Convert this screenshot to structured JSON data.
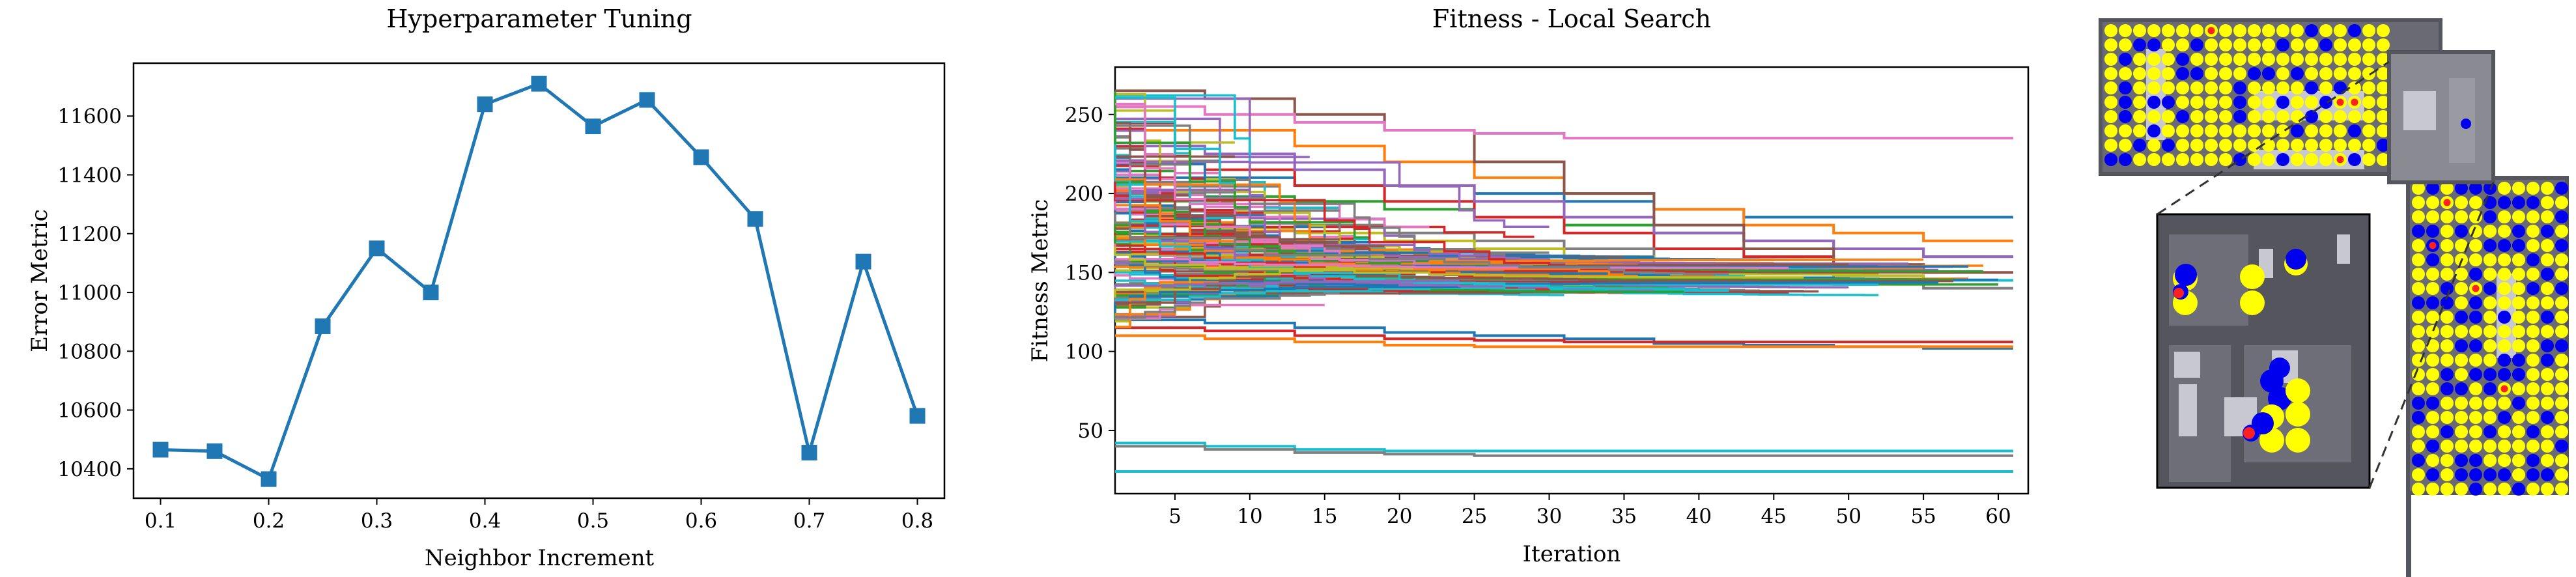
{
  "chart_data": [
    {
      "type": "line",
      "title": "Hyperparameter Tuning",
      "xlabel": "Neighbor Increment",
      "ylabel": "Error Metric",
      "xlim": [
        0.075,
        0.825
      ],
      "ylim": [
        10300,
        11780
      ],
      "xticks": [
        0.1,
        0.2,
        0.3,
        0.4,
        0.5,
        0.6,
        0.7,
        0.8
      ],
      "yticks": [
        10400,
        10600,
        10800,
        11000,
        11200,
        11400,
        11600
      ],
      "color": "#1f77b4",
      "marker": "square",
      "x": [
        0.1,
        0.15,
        0.2,
        0.25,
        0.3,
        0.35,
        0.4,
        0.45,
        0.5,
        0.55,
        0.6,
        0.65,
        0.7,
        0.75,
        0.8
      ],
      "values": [
        10465,
        10460,
        10365,
        10885,
        11150,
        11000,
        11640,
        11710,
        11565,
        11655,
        11460,
        11250,
        10455,
        11105,
        10580
      ]
    },
    {
      "type": "line",
      "title": "Fitness - Local Search",
      "xlabel": "Iteration",
      "ylabel": "Fitness Metric",
      "xlim": [
        1,
        62
      ],
      "ylim": [
        10,
        280
      ],
      "xticks": [
        5,
        10,
        15,
        20,
        25,
        30,
        35,
        40,
        45,
        50,
        55,
        60
      ],
      "yticks": [
        50,
        100,
        150,
        200,
        250
      ],
      "series_count_note_visible": false,
      "series": [
        {
          "color": "#1f77b4",
          "values": [
            210,
            210,
            205,
            205,
            200,
            195,
            190,
            185,
            185,
            185
          ]
        },
        {
          "color": "#ff7f0e",
          "values": [
            240,
            240,
            230,
            220,
            210,
            200,
            190,
            180,
            175,
            170
          ]
        },
        {
          "color": "#2ca02c",
          "values": [
            200,
            198,
            195,
            190,
            185,
            180,
            175,
            170,
            165,
            160
          ]
        },
        {
          "color": "#d62728",
          "values": [
            220,
            215,
            205,
            195,
            185,
            175,
            165,
            160,
            155,
            150
          ]
        },
        {
          "color": "#9467bd",
          "values": [
            230,
            225,
            215,
            205,
            195,
            185,
            175,
            170,
            165,
            160
          ]
        },
        {
          "color": "#8c564b",
          "values": [
            265,
            260,
            250,
            240,
            220,
            200,
            180,
            165,
            155,
            150
          ]
        },
        {
          "color": "#e377c2",
          "values": [
            255,
            250,
            245,
            240,
            238,
            235,
            235,
            235,
            235,
            235
          ]
        },
        {
          "color": "#7f7f7f",
          "values": [
            190,
            185,
            180,
            175,
            170,
            165,
            155,
            150,
            145,
            140
          ]
        },
        {
          "color": "#bcbd22",
          "values": [
            180,
            178,
            175,
            170,
            165,
            160,
            155,
            150,
            148,
            145
          ]
        },
        {
          "color": "#17becf",
          "values": [
            170,
            168,
            165,
            160,
            155,
            150,
            148,
            145,
            145,
            145
          ]
        },
        {
          "color": "#1f77b4",
          "values": [
            120,
            118,
            115,
            112,
            110,
            108,
            105,
            104,
            103,
            102
          ]
        },
        {
          "color": "#d62728",
          "values": [
            115,
            113,
            110,
            108,
            107,
            106,
            106,
            106,
            106,
            106
          ]
        },
        {
          "color": "#ff7f0e",
          "values": [
            110,
            108,
            106,
            104,
            103,
            103,
            103,
            103,
            103,
            103
          ]
        },
        {
          "color": "#17becf",
          "values": [
            42,
            40,
            38,
            37,
            37,
            37,
            37,
            37,
            37,
            37
          ]
        },
        {
          "color": "#7f7f7f",
          "values": [
            40,
            38,
            36,
            35,
            34,
            34,
            34,
            34,
            34,
            34
          ]
        },
        {
          "color": "#17becf",
          "values": [
            24,
            24,
            24,
            24,
            24,
            24,
            24,
            24,
            24,
            24
          ]
        }
      ]
    }
  ],
  "floorplan": {
    "colors": {
      "agent_yellow": "#ffff00",
      "agent_blue": "#0000ee",
      "marker_red": "#ff2020",
      "background": "#55555e"
    }
  }
}
